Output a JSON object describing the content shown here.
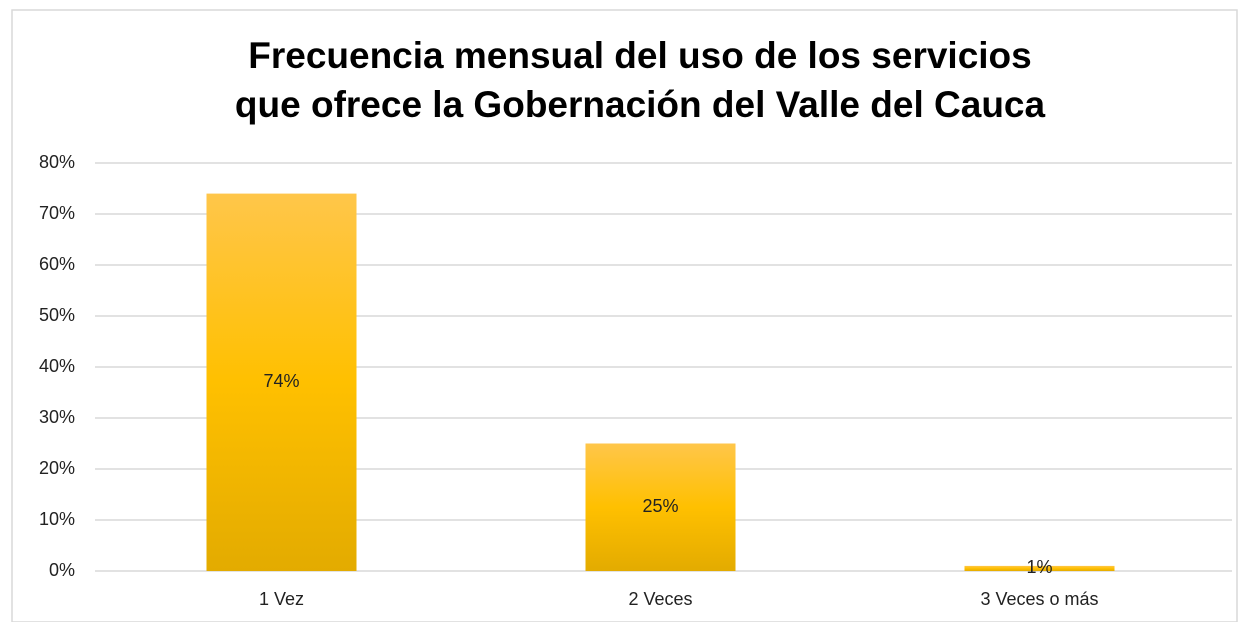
{
  "chart_data": {
    "type": "bar",
    "title": [
      "Frecuencia mensual del uso de los servicios",
      "que ofrece la Gobernación del Valle del Cauca"
    ],
    "categories": [
      "1 Vez",
      "2 Veces",
      "3 Veces o más"
    ],
    "values": [
      74,
      25,
      1
    ],
    "value_labels": [
      "74%",
      "25%",
      "1%"
    ],
    "color": "#ffc000",
    "ylim": [
      0,
      80
    ],
    "yticks": [
      {
        "value": 0,
        "label": "0%"
      },
      {
        "value": 10,
        "label": "10%"
      },
      {
        "value": 20,
        "label": "20%"
      },
      {
        "value": 30,
        "label": "30%"
      },
      {
        "value": 40,
        "label": "40%"
      },
      {
        "value": 50,
        "label": "50%"
      },
      {
        "value": 60,
        "label": "60%"
      },
      {
        "value": 70,
        "label": "70%"
      },
      {
        "value": 80,
        "label": "80%"
      }
    ],
    "grid": true
  }
}
